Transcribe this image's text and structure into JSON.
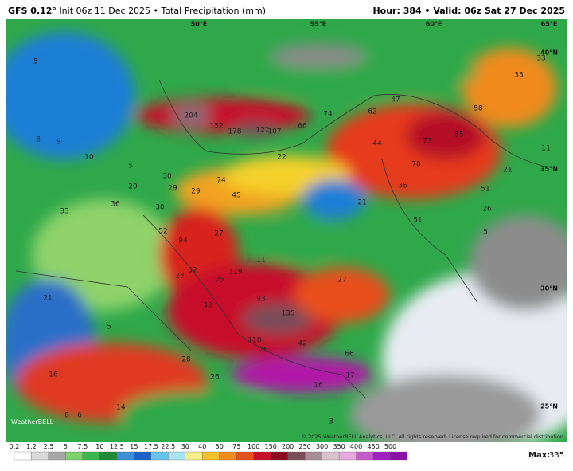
{
  "header": {
    "model": "GFS 0.12°",
    "run": "Init 06z 11 Dec 2025 • Total Precipitation (mm)",
    "valid": "Hour: 384 • Valid: 06z Sat 27 Dec 2025"
  },
  "map": {
    "labels": [
      204,
      152,
      178,
      121,
      107,
      66,
      74,
      47,
      62,
      58,
      73,
      55,
      78,
      44,
      22,
      33,
      33,
      11,
      21,
      36,
      51,
      51,
      26,
      5,
      74,
      45,
      29,
      29,
      30,
      20,
      30,
      36,
      33,
      52,
      94,
      27,
      21,
      11,
      119,
      75,
      32,
      23,
      93,
      135,
      27,
      38,
      110,
      76,
      42,
      66,
      28,
      21,
      5,
      16,
      14,
      8,
      6,
      16,
      17,
      26,
      3,
      5,
      8,
      9,
      10,
      5
    ],
    "coordinates": [
      "50°E",
      "55°E",
      "60°E",
      "65°E",
      "40°N",
      "35°N",
      "30°N",
      "25°N"
    ],
    "copyright": "© 2025 WeatherBELL Analytics, LLC. All rights reserved. License required for commercial distribution.",
    "logo": "WeatherBELL"
  },
  "legend": {
    "levels": [
      0.2,
      1.2,
      2.5,
      5,
      7.5,
      10,
      12.5,
      15,
      17.5,
      22.5,
      30,
      40,
      50,
      75,
      100,
      150,
      200,
      250,
      300,
      350,
      400,
      450,
      500
    ],
    "max_label": "Max:",
    "max_value": 335
  }
}
